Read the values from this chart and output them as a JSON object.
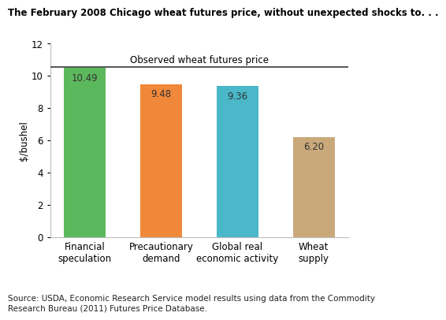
{
  "title": "The February 2008 Chicago wheat futures price, without unexpected shocks to. . .",
  "ylabel": "$/bushel",
  "categories": [
    "Financial\nspeculation",
    "Precautionary\ndemand",
    "Global real\neconomic activity",
    "Wheat\nsupply"
  ],
  "values": [
    10.49,
    9.48,
    9.36,
    6.2
  ],
  "bar_colors": [
    "#5cb85c",
    "#f0883a",
    "#4ab8c8",
    "#c9a97a"
  ],
  "ylim": [
    0,
    12
  ],
  "yticks": [
    0,
    2,
    4,
    6,
    8,
    10,
    12
  ],
  "observed_price": 10.55,
  "observed_label": "Observed wheat futures price",
  "source_text": "Source: USDA, Economic Research Service model results using data from the Commodity\nResearch Bureau (2011) Futures Price Database.",
  "hline_color": "#555555",
  "bar_label_color": "#333333",
  "title_fontsize": 8.5,
  "label_fontsize": 8.5,
  "tick_fontsize": 8.5,
  "source_fontsize": 7.5,
  "observed_fontsize": 8.5,
  "bar_width": 0.55
}
